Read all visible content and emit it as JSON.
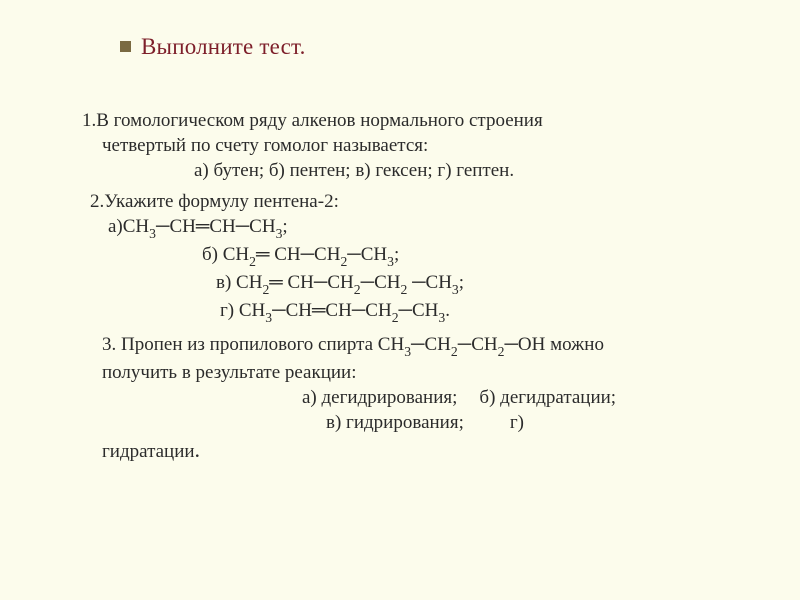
{
  "colors": {
    "background": "#fcfcec",
    "title": "#7d1f2a",
    "bullet": "#7a6a42",
    "text": "#2b2b2b"
  },
  "title": "Выполните тест.",
  "q1": {
    "line1": "1.В гомологическом ряду алкенов нормального строения",
    "line2": "четвертый по счету гомолог называется:",
    "options": "а) бутен;  б) пентен;  в) гексен;  г) гептен."
  },
  "q2": {
    "head": "2.Укажите формулу пентена-2:",
    "opt_a_pre": "а)СН",
    "opt_a_mid1": "─СН═СН─СН",
    "opt_a_post": ";",
    "opt_b_pre": "б) СН",
    "opt_b_mid1": "═ СН─СН",
    "opt_b_mid2": "─СН",
    "opt_b_post": ";",
    "opt_c_pre": "в) СН",
    "opt_c_mid1": "═ СН─СН",
    "opt_c_mid2": "─СН",
    "opt_c_mid3": " ─СН",
    "opt_c_post": ";",
    "opt_d_pre": "г)  СН",
    "opt_d_mid1": "─СН═СН─СН",
    "opt_d_mid2": "─СН",
    "opt_d_post": ".",
    "s2": "2",
    "s3": "3"
  },
  "q3": {
    "line1_pre": "3. Пропен из пропилового спирта СН",
    "line1_mid1": "─СН",
    "line1_mid2": "─СН",
    "line1_post": "─ОН можно",
    "line2": "получить в результате     реакции:",
    "opts1_a": "а) дегидрирования;",
    "opts1_b": "б) дегидратации;",
    "opts2_a": "в) гидрирования;",
    "opts2_b": "г)",
    "last": "гидратации",
    "dot": ".",
    "s2": "2",
    "s3": "3"
  }
}
